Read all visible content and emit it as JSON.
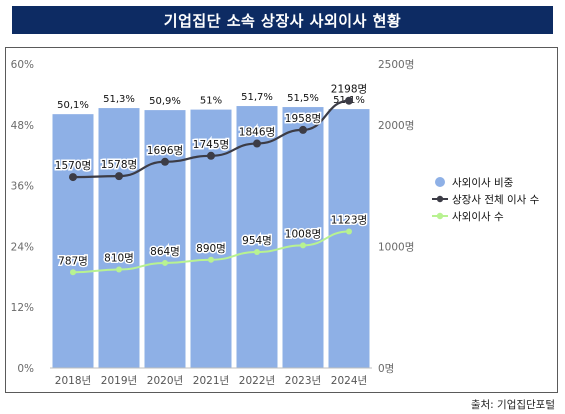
{
  "title": "기업집단 소속 상장사 사외이사 현황",
  "source": "출처: 기업집단포털",
  "colors": {
    "title_bg": "#0d2b63",
    "bar": "#8eb0e6",
    "total_line": "#3c3c46",
    "outside_line": "#b8f291"
  },
  "chart_data": {
    "type": "bar",
    "categories": [
      "2018년",
      "2019년",
      "2020년",
      "2021년",
      "2022년",
      "2023년",
      "2024년"
    ],
    "y_left": {
      "ticks": [
        "0%",
        "12%",
        "24%",
        "36%",
        "48%",
        "60%"
      ],
      "ylim": [
        0,
        60
      ]
    },
    "y_right": {
      "ticks": [
        "0명",
        "1000명",
        "2000명",
        "2500명"
      ],
      "ylim": [
        0,
        2500
      ]
    },
    "grid": false,
    "legend_position": "right",
    "series": [
      {
        "name": "사외이사 비중",
        "kind": "bar",
        "axis": "left",
        "values": [
          50.1,
          51.3,
          50.9,
          51.0,
          51.7,
          51.5,
          51.1
        ],
        "labels": [
          "50,1%",
          "51,3%",
          "50,9%",
          "51%",
          "51,7%",
          "51,5%",
          "51,1%"
        ]
      },
      {
        "name": "상장사 전체 이사 수",
        "kind": "line",
        "axis": "right",
        "values": [
          1570,
          1578,
          1696,
          1745,
          1846,
          1958,
          2198
        ],
        "labels": [
          "1570명",
          "1578명",
          "1696명",
          "1745명",
          "1846명",
          "1958명",
          "2198명"
        ]
      },
      {
        "name": "사외이사 수",
        "kind": "line",
        "axis": "right",
        "values": [
          787,
          810,
          864,
          890,
          954,
          1008,
          1123
        ],
        "labels": [
          "787명",
          "810명",
          "864명",
          "890명",
          "954명",
          "1008명",
          "1123명"
        ]
      }
    ]
  }
}
